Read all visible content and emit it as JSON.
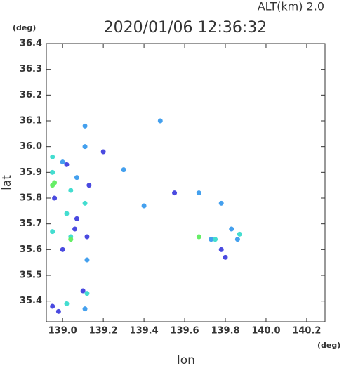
{
  "chart_data": {
    "type": "scatter",
    "title": "2020/01/06 12:36:32",
    "subtitle": "ALT(km) 2.0",
    "y_unit": "(deg)",
    "x_unit": "(deg)",
    "xlabel": "lon",
    "ylabel": "lat",
    "xlim": [
      138.92,
      140.29
    ],
    "ylim": [
      35.32,
      36.4
    ],
    "xticks": [
      {
        "value": 139,
        "label": "139.0"
      },
      139.2,
      139.4,
      139.6,
      139.8,
      {
        "value": 140,
        "label": "140.0"
      },
      140.2
    ],
    "yticks": [
      35.4,
      35.5,
      35.6,
      35.7,
      35.8,
      35.9,
      {
        "value": 36,
        "label": "36.0"
      },
      36.1,
      36.2,
      36.3,
      36.4
    ],
    "series": [
      {
        "color": "#4a4ae0",
        "x": [
          139.2,
          138.96,
          139.0,
          139.1,
          138.95,
          138.98,
          139.12,
          139.07,
          139.8,
          139.78,
          139.55,
          139.02,
          139.06,
          139.13
        ],
        "values": [
          35.98,
          35.8,
          35.6,
          35.44,
          35.38,
          35.36,
          35.65,
          35.72,
          35.57,
          35.6,
          35.82,
          35.93,
          35.68,
          35.85
        ]
      },
      {
        "color": "#44a0ee",
        "x": [
          139.48,
          139.11,
          139.11,
          139.67,
          139.78,
          139.73,
          139.86,
          139.83,
          139.07,
          139.0,
          139.3,
          139.11,
          139.12,
          139.4
        ],
        "values": [
          36.1,
          36.08,
          36.0,
          35.82,
          35.78,
          35.64,
          35.64,
          35.68,
          35.88,
          35.94,
          35.91,
          35.37,
          35.56,
          35.77
        ]
      },
      {
        "color": "#44ddd0",
        "x": [
          138.95,
          138.95,
          138.95,
          139.02,
          139.04,
          139.04,
          139.02,
          139.12,
          139.11,
          139.87,
          139.75
        ],
        "values": [
          35.96,
          35.9,
          35.67,
          35.74,
          35.65,
          35.83,
          35.39,
          35.43,
          35.78,
          35.66,
          35.64
        ]
      },
      {
        "color": "#66ee66",
        "x": [
          138.95,
          138.96,
          139.04,
          139.67
        ],
        "values": [
          35.85,
          35.86,
          35.64,
          35.65
        ]
      }
    ]
  }
}
